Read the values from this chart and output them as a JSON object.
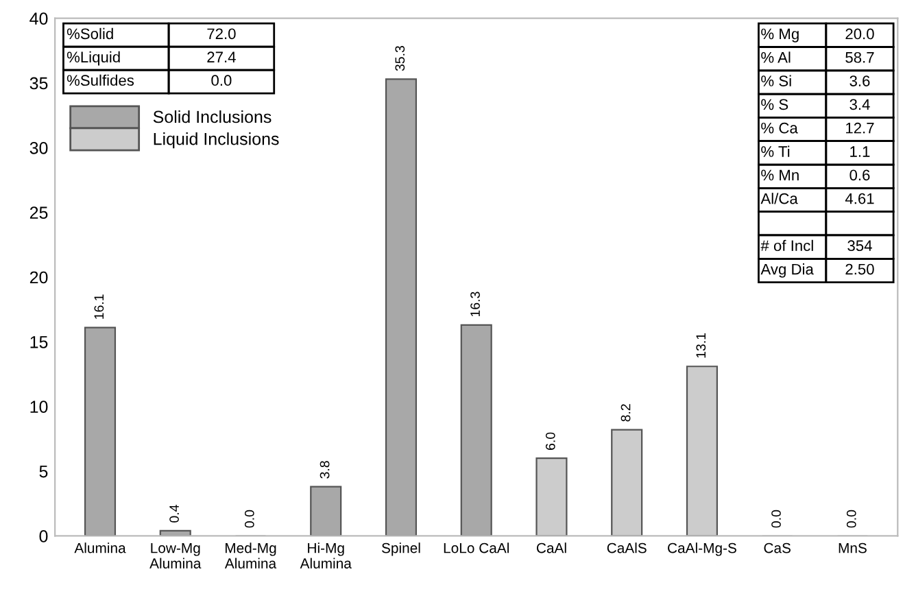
{
  "chart_data": {
    "type": "bar",
    "categories": [
      "Alumina",
      "Low-Mg\nAlumina",
      "Med-Mg\nAlumina",
      "Hi-Mg\nAlumina",
      "Spinel",
      "LoLo CaAl",
      "CaAl",
      "CaAlS",
      "CaAl-Mg-S",
      "CaS",
      "MnS"
    ],
    "series": [
      {
        "name": "Solid Inclusions",
        "color": "#a8a8a8",
        "values": [
          16.1,
          0.4,
          0.0,
          3.8,
          35.3,
          16.3,
          null,
          null,
          null,
          null,
          null
        ],
        "value_labels": [
          "16.1",
          "0.4",
          "0.0",
          "3.8",
          "35.3",
          "16.3",
          null,
          null,
          null,
          null,
          null
        ]
      },
      {
        "name": "Liquid Inclusions",
        "color": "#cccccc",
        "values": [
          null,
          null,
          null,
          null,
          null,
          null,
          6.0,
          8.2,
          13.1,
          0.0,
          0.0
        ],
        "value_labels": [
          null,
          null,
          null,
          null,
          null,
          null,
          "6.0",
          "8.2",
          "13.1",
          "0.0",
          "0.0"
        ]
      }
    ],
    "ylim": [
      0,
      40
    ],
    "yticks": [
      0,
      5,
      10,
      15,
      20,
      25,
      30,
      35,
      40
    ],
    "legend": "top left",
    "grid": false,
    "annotations": [
      "%Solid",
      "72.0",
      "%Liquid",
      "27.4",
      "%Sulfides",
      "0.0",
      "% Mg",
      "20.0",
      "% Al",
      "58.7",
      "% Si",
      "3.6",
      "% S",
      "3.4",
      "% Ca",
      "12.7",
      "% Ti",
      "1.1",
      "% Mn",
      "0.6",
      "Al/Ca",
      "4.61",
      "# of Incl",
      "354",
      "Avg Dia",
      "2.50"
    ]
  }
}
